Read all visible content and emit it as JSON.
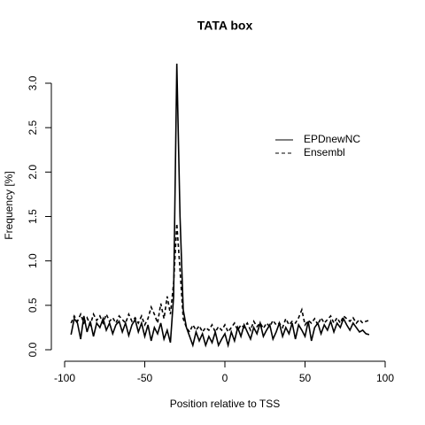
{
  "chart_data": {
    "type": "line",
    "title": "TATA box",
    "x_label": "Position relative to TSS",
    "y_label": "Frequency [%]",
    "x": [
      -96,
      -94,
      -92,
      -90,
      -88,
      -86,
      -84,
      -82,
      -80,
      -78,
      -76,
      -74,
      -72,
      -70,
      -68,
      -66,
      -64,
      -62,
      -60,
      -58,
      -56,
      -54,
      -52,
      -50,
      -48,
      -46,
      -44,
      -42,
      -40,
      -38,
      -36,
      -34,
      -32,
      -30,
      -28,
      -26,
      -24,
      -22,
      -20,
      -18,
      -16,
      -14,
      -12,
      -10,
      -8,
      -6,
      -4,
      -2,
      0,
      2,
      4,
      6,
      8,
      10,
      12,
      14,
      16,
      18,
      20,
      22,
      24,
      26,
      28,
      30,
      32,
      34,
      36,
      38,
      40,
      42,
      44,
      46,
      48,
      50,
      52,
      54,
      56,
      58,
      60,
      62,
      64,
      66,
      68,
      70,
      72,
      74,
      76,
      78,
      80,
      82,
      84,
      86,
      88,
      90
    ],
    "series": [
      {
        "name": "EPDnewNC",
        "color": "#000000",
        "linestyle": "solid",
        "values": [
          0.17,
          0.35,
          0.3,
          0.12,
          0.38,
          0.2,
          0.32,
          0.15,
          0.3,
          0.25,
          0.35,
          0.22,
          0.3,
          0.18,
          0.28,
          0.32,
          0.2,
          0.3,
          0.16,
          0.28,
          0.34,
          0.2,
          0.3,
          0.15,
          0.28,
          0.1,
          0.25,
          0.18,
          0.3,
          0.12,
          0.22,
          0.08,
          0.6,
          3.22,
          1.5,
          0.45,
          0.25,
          0.15,
          0.05,
          0.2,
          0.1,
          0.18,
          0.05,
          0.15,
          0.08,
          0.2,
          0.05,
          0.12,
          0.18,
          0.05,
          0.2,
          0.1,
          0.25,
          0.15,
          0.28,
          0.2,
          0.12,
          0.25,
          0.18,
          0.3,
          0.15,
          0.22,
          0.28,
          0.12,
          0.2,
          0.3,
          0.15,
          0.25,
          0.18,
          0.3,
          0.12,
          0.28,
          0.22,
          0.15,
          0.32,
          0.1,
          0.25,
          0.3,
          0.18,
          0.28,
          0.22,
          0.32,
          0.2,
          0.3,
          0.25,
          0.35,
          0.28,
          0.22,
          0.3,
          0.25,
          0.2,
          0.22,
          0.18,
          0.17
        ]
      },
      {
        "name": "Ensembl",
        "color": "#000000",
        "linestyle": "dashed",
        "values": [
          0.3,
          0.38,
          0.32,
          0.4,
          0.3,
          0.36,
          0.28,
          0.4,
          0.33,
          0.38,
          0.3,
          0.4,
          0.32,
          0.36,
          0.3,
          0.38,
          0.34,
          0.3,
          0.4,
          0.32,
          0.36,
          0.3,
          0.38,
          0.28,
          0.35,
          0.48,
          0.4,
          0.3,
          0.52,
          0.35,
          0.6,
          0.4,
          0.75,
          1.42,
          0.9,
          0.35,
          0.25,
          0.2,
          0.28,
          0.22,
          0.27,
          0.2,
          0.25,
          0.22,
          0.28,
          0.2,
          0.26,
          0.22,
          0.28,
          0.2,
          0.25,
          0.3,
          0.22,
          0.28,
          0.25,
          0.3,
          0.22,
          0.32,
          0.26,
          0.3,
          0.24,
          0.3,
          0.26,
          0.33,
          0.28,
          0.3,
          0.25,
          0.35,
          0.28,
          0.32,
          0.3,
          0.36,
          0.45,
          0.28,
          0.33,
          0.3,
          0.35,
          0.28,
          0.36,
          0.3,
          0.34,
          0.38,
          0.3,
          0.36,
          0.3,
          0.38,
          0.35,
          0.32,
          0.36,
          0.3,
          0.34,
          0.3,
          0.32,
          0.33
        ]
      }
    ],
    "xlim": [
      -100,
      100
    ],
    "xticks": [
      -100,
      -50,
      0,
      50,
      100
    ],
    "ylim": [
      0,
      3
    ],
    "yticks": [
      {
        "value": 0,
        "label": "0.0"
      },
      0.5,
      {
        "value": 1,
        "label": "1.0"
      },
      1.5,
      {
        "value": 2,
        "label": "2.0"
      },
      2.5,
      {
        "value": 3,
        "label": "3.0"
      }
    ],
    "legend": "topright"
  }
}
